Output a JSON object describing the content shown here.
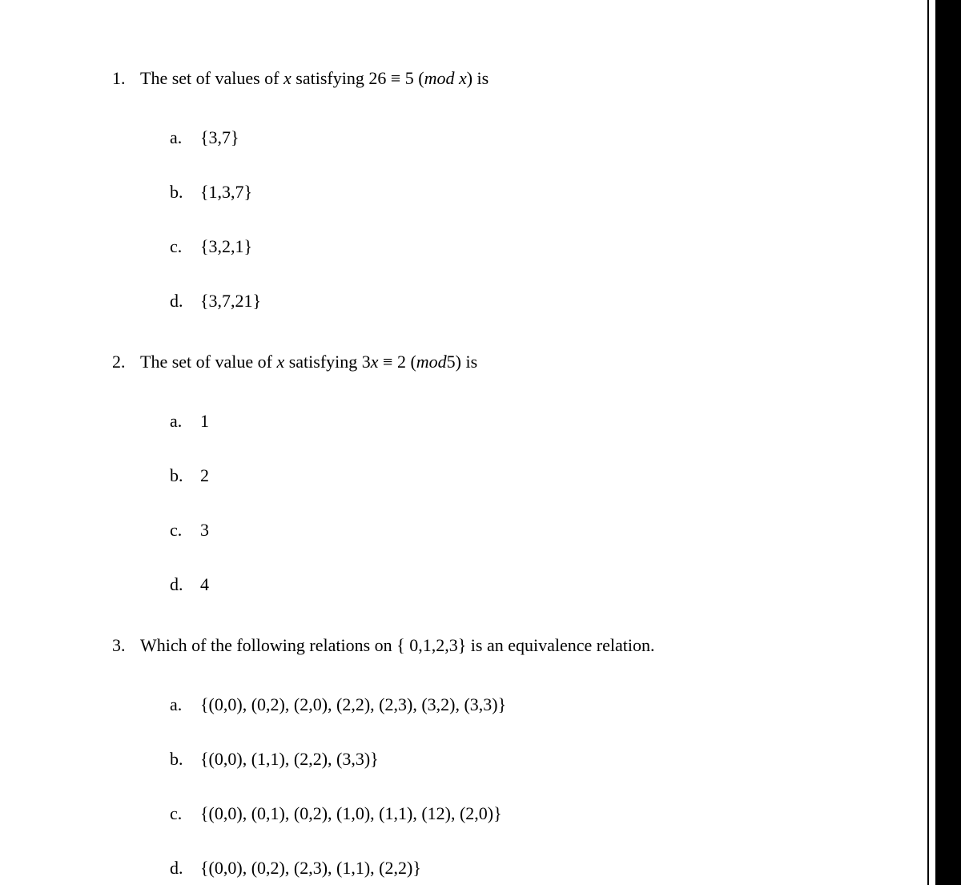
{
  "questions": [
    {
      "number": "1.",
      "text_parts": [
        "The set of values of ",
        "x",
        "  satisfying 26 ≡ 5   (",
        "mod x",
        ") is"
      ],
      "text_styles": [
        "normal",
        "italic",
        "normal",
        "italic",
        "normal"
      ],
      "options": [
        {
          "letter": "a.",
          "text": "{3,7}"
        },
        {
          "letter": "b.",
          "text": "{1,3,7}"
        },
        {
          "letter": "c.",
          "text": "{3,2,1}"
        },
        {
          "letter": "d.",
          "text": "{3,7,21}"
        }
      ]
    },
    {
      "number": "2.",
      "text_parts": [
        "The set of value of ",
        "x",
        "  satisfying 3",
        "x",
        " ≡ 2   (",
        "mod",
        "5) is"
      ],
      "text_styles": [
        "normal",
        "italic",
        "normal",
        "italic",
        "normal",
        "italic",
        "normal"
      ],
      "options": [
        {
          "letter": "a.",
          "text": "1"
        },
        {
          "letter": "b.",
          "text": "2"
        },
        {
          "letter": "c.",
          "text": "3"
        },
        {
          "letter": "d.",
          "text": "4"
        }
      ]
    },
    {
      "number": "3.",
      "text_parts": [
        "Which of the following relations on { 0,1,2,3} is an equivalence relation."
      ],
      "text_styles": [
        "normal"
      ],
      "options": [
        {
          "letter": "a.",
          "text": "{(0,0), (0,2), (2,0), (2,2), (2,3), (3,2), (3,3)}"
        },
        {
          "letter": "b.",
          "text": "{(0,0), (1,1), (2,2), (3,3)}"
        },
        {
          "letter": "c.",
          "text": "{(0,0), (0,1), (0,2), (1,0), (1,1), (12), (2,0)}"
        },
        {
          "letter": "d.",
          "text": "{(0,0), (0,2), (2,3), (1,1), (2,2)}"
        }
      ]
    }
  ],
  "styling": {
    "font_family": "Times New Roman",
    "font_size": 22,
    "text_color": "#000000",
    "background_color": "#ffffff",
    "border_color": "#000000"
  }
}
